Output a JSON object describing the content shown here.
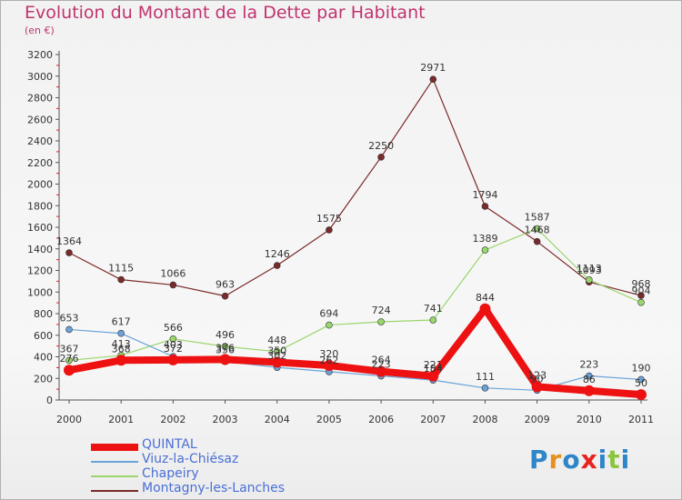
{
  "chart_data": {
    "type": "line",
    "title": "Evolution du Montant de la Dette par Habitant",
    "subtitle": "(en €)",
    "x": [
      "2000",
      "2001",
      "2002",
      "2003",
      "2004",
      "2005",
      "2006",
      "2007",
      "2008",
      "2009",
      "2010",
      "2011"
    ],
    "ylim": [
      0,
      3200
    ],
    "yticks": [
      0,
      200,
      400,
      600,
      800,
      1000,
      1200,
      1400,
      1600,
      1800,
      2000,
      2200,
      2400,
      2600,
      2800,
      3000,
      3200
    ],
    "grid": false,
    "legend_position": "bottom-left",
    "series": [
      {
        "name": "QUINTAL",
        "color": "#ee1111",
        "width": 8,
        "values": [
          276,
          368,
          372,
          376,
          350,
          320,
          264,
          221,
          844,
          123,
          86,
          50
        ]
      },
      {
        "name": "Viuz-la-Chiésaz",
        "color": "#6aa3d8",
        "width": 1.2,
        "values": [
          653,
          617,
          403,
          356,
          302,
          262,
          223,
          184,
          111,
          90,
          223,
          190
        ]
      },
      {
        "name": "Chapeiry",
        "color": "#9ad66c",
        "width": 1.2,
        "values": [
          367,
          413,
          566,
          496,
          448,
          694,
          724,
          741,
          1389,
          1587,
          1113,
          904
        ]
      },
      {
        "name": "Montagny-les-Lanches",
        "color": "#7a2a2a",
        "width": 1.2,
        "values": [
          1364,
          1115,
          1066,
          963,
          1246,
          1575,
          2250,
          2971,
          1794,
          1468,
          1093,
          968
        ]
      }
    ]
  },
  "logo": {
    "text": "Proxiti",
    "letters": [
      "P",
      "r",
      "o",
      "x",
      "i",
      "t",
      "i"
    ],
    "colors": [
      "#2e86c8",
      "#e8901e",
      "#2e86c8",
      "#e8231e",
      "#2e86c8",
      "#8cc63f",
      "#2e86c8"
    ]
  }
}
